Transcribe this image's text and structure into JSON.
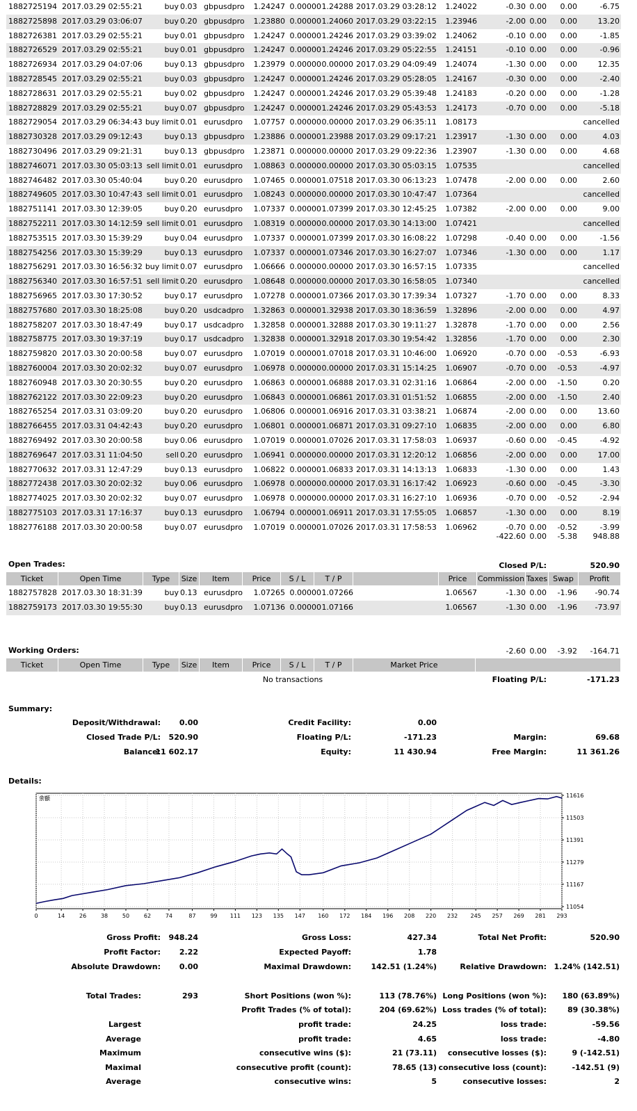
{
  "closed_trades": [
    [
      "1882725194",
      "2017.03.29 02:55:21",
      "buy",
      "0.03",
      "gbpusdpro",
      "1.24247",
      "0.00000",
      "1.24288",
      "2017.03.29 03:28:12",
      "1.24022",
      "-0.30",
      "0.00",
      "0.00",
      "-6.75"
    ],
    [
      "1882725898",
      "2017.03.29 03:06:07",
      "buy",
      "0.20",
      "gbpusdpro",
      "1.23880",
      "0.00000",
      "1.24060",
      "2017.03.29 03:22:15",
      "1.23946",
      "-2.00",
      "0.00",
      "0.00",
      "13.20"
    ],
    [
      "1882726381",
      "2017.03.29 02:55:21",
      "buy",
      "0.01",
      "gbpusdpro",
      "1.24247",
      "0.00000",
      "1.24246",
      "2017.03.29 03:39:02",
      "1.24062",
      "-0.10",
      "0.00",
      "0.00",
      "-1.85"
    ],
    [
      "1882726529",
      "2017.03.29 02:55:21",
      "buy",
      "0.01",
      "gbpusdpro",
      "1.24247",
      "0.00000",
      "1.24246",
      "2017.03.29 05:22:55",
      "1.24151",
      "-0.10",
      "0.00",
      "0.00",
      "-0.96"
    ],
    [
      "1882726934",
      "2017.03.29 04:07:06",
      "buy",
      "0.13",
      "gbpusdpro",
      "1.23979",
      "0.00000",
      "0.00000",
      "2017.03.29 04:09:49",
      "1.24074",
      "-1.30",
      "0.00",
      "0.00",
      "12.35"
    ],
    [
      "1882728545",
      "2017.03.29 02:55:21",
      "buy",
      "0.03",
      "gbpusdpro",
      "1.24247",
      "0.00000",
      "1.24246",
      "2017.03.29 05:28:05",
      "1.24167",
      "-0.30",
      "0.00",
      "0.00",
      "-2.40"
    ],
    [
      "1882728631",
      "2017.03.29 02:55:21",
      "buy",
      "0.02",
      "gbpusdpro",
      "1.24247",
      "0.00000",
      "1.24246",
      "2017.03.29 05:39:48",
      "1.24183",
      "-0.20",
      "0.00",
      "0.00",
      "-1.28"
    ],
    [
      "1882728829",
      "2017.03.29 02:55:21",
      "buy",
      "0.07",
      "gbpusdpro",
      "1.24247",
      "0.00000",
      "1.24246",
      "2017.03.29 05:43:53",
      "1.24173",
      "-0.70",
      "0.00",
      "0.00",
      "-5.18"
    ],
    [
      "1882729054",
      "2017.03.29 06:34:43",
      "buy limit",
      "0.01",
      "eurusdpro",
      "1.07757",
      "0.00000",
      "0.00000",
      "2017.03.29 06:35:11",
      "1.08173",
      "",
      "",
      "",
      "cancelled"
    ],
    [
      "1882730328",
      "2017.03.29 09:12:43",
      "buy",
      "0.13",
      "gbpusdpro",
      "1.23886",
      "0.00000",
      "1.23988",
      "2017.03.29 09:17:21",
      "1.23917",
      "-1.30",
      "0.00",
      "0.00",
      "4.03"
    ],
    [
      "1882730496",
      "2017.03.29 09:21:31",
      "buy",
      "0.13",
      "gbpusdpro",
      "1.23871",
      "0.00000",
      "0.00000",
      "2017.03.29 09:22:36",
      "1.23907",
      "-1.30",
      "0.00",
      "0.00",
      "4.68"
    ],
    [
      "1882746071",
      "2017.03.30 05:03:13",
      "sell limit",
      "0.01",
      "eurusdpro",
      "1.08863",
      "0.00000",
      "0.00000",
      "2017.03.30 05:03:15",
      "1.07535",
      "",
      "",
      "",
      "cancelled"
    ],
    [
      "1882746482",
      "2017.03.30 05:40:04",
      "buy",
      "0.20",
      "eurusdpro",
      "1.07465",
      "0.00000",
      "1.07518",
      "2017.03.30 06:13:23",
      "1.07478",
      "-2.00",
      "0.00",
      "0.00",
      "2.60"
    ],
    [
      "1882749605",
      "2017.03.30 10:47:43",
      "sell limit",
      "0.01",
      "eurusdpro",
      "1.08243",
      "0.00000",
      "0.00000",
      "2017.03.30 10:47:47",
      "1.07364",
      "",
      "",
      "",
      "cancelled"
    ],
    [
      "1882751141",
      "2017.03.30 12:39:05",
      "buy",
      "0.20",
      "eurusdpro",
      "1.07337",
      "0.00000",
      "1.07399",
      "2017.03.30 12:45:25",
      "1.07382",
      "-2.00",
      "0.00",
      "0.00",
      "9.00"
    ],
    [
      "1882752211",
      "2017.03.30 14:12:59",
      "sell limit",
      "0.01",
      "eurusdpro",
      "1.08319",
      "0.00000",
      "0.00000",
      "2017.03.30 14:13:00",
      "1.07421",
      "",
      "",
      "",
      "cancelled"
    ],
    [
      "1882753515",
      "2017.03.30 15:39:29",
      "buy",
      "0.04",
      "eurusdpro",
      "1.07337",
      "0.00000",
      "1.07399",
      "2017.03.30 16:08:22",
      "1.07298",
      "-0.40",
      "0.00",
      "0.00",
      "-1.56"
    ],
    [
      "1882754256",
      "2017.03.30 15:39:29",
      "buy",
      "0.13",
      "eurusdpro",
      "1.07337",
      "0.00000",
      "1.07346",
      "2017.03.30 16:27:07",
      "1.07346",
      "-1.30",
      "0.00",
      "0.00",
      "1.17"
    ],
    [
      "1882756291",
      "2017.03.30 16:56:32",
      "buy limit",
      "0.07",
      "eurusdpro",
      "1.06666",
      "0.00000",
      "0.00000",
      "2017.03.30 16:57:15",
      "1.07335",
      "",
      "",
      "",
      "cancelled"
    ],
    [
      "1882756340",
      "2017.03.30 16:57:51",
      "sell limit",
      "0.20",
      "eurusdpro",
      "1.08648",
      "0.00000",
      "0.00000",
      "2017.03.30 16:58:05",
      "1.07340",
      "",
      "",
      "",
      "cancelled"
    ],
    [
      "1882756965",
      "2017.03.30 17:30:52",
      "buy",
      "0.17",
      "eurusdpro",
      "1.07278",
      "0.00000",
      "1.07366",
      "2017.03.30 17:39:34",
      "1.07327",
      "-1.70",
      "0.00",
      "0.00",
      "8.33"
    ],
    [
      "1882757680",
      "2017.03.30 18:25:08",
      "buy",
      "0.20",
      "usdcadpro",
      "1.32863",
      "0.00000",
      "1.32938",
      "2017.03.30 18:36:59",
      "1.32896",
      "-2.00",
      "0.00",
      "0.00",
      "4.97"
    ],
    [
      "1882758207",
      "2017.03.30 18:47:49",
      "buy",
      "0.17",
      "usdcadpro",
      "1.32858",
      "0.00000",
      "1.32888",
      "2017.03.30 19:11:27",
      "1.32878",
      "-1.70",
      "0.00",
      "0.00",
      "2.56"
    ],
    [
      "1882758775",
      "2017.03.30 19:37:19",
      "buy",
      "0.17",
      "usdcadpro",
      "1.32838",
      "0.00000",
      "1.32918",
      "2017.03.30 19:54:42",
      "1.32856",
      "-1.70",
      "0.00",
      "0.00",
      "2.30"
    ],
    [
      "1882759820",
      "2017.03.30 20:00:58",
      "buy",
      "0.07",
      "eurusdpro",
      "1.07019",
      "0.00000",
      "1.07018",
      "2017.03.31 10:46:00",
      "1.06920",
      "-0.70",
      "0.00",
      "-0.53",
      "-6.93"
    ],
    [
      "1882760004",
      "2017.03.30 20:02:32",
      "buy",
      "0.07",
      "eurusdpro",
      "1.06978",
      "0.00000",
      "0.00000",
      "2017.03.31 15:14:25",
      "1.06907",
      "-0.70",
      "0.00",
      "-0.53",
      "-4.97"
    ],
    [
      "1882760948",
      "2017.03.30 20:30:55",
      "buy",
      "0.20",
      "eurusdpro",
      "1.06863",
      "0.00000",
      "1.06888",
      "2017.03.31 02:31:16",
      "1.06864",
      "-2.00",
      "0.00",
      "-1.50",
      "0.20"
    ],
    [
      "1882762122",
      "2017.03.30 22:09:23",
      "buy",
      "0.20",
      "eurusdpro",
      "1.06843",
      "0.00000",
      "1.06861",
      "2017.03.31 01:51:52",
      "1.06855",
      "-2.00",
      "0.00",
      "-1.50",
      "2.40"
    ],
    [
      "1882765254",
      "2017.03.31 03:09:20",
      "buy",
      "0.20",
      "eurusdpro",
      "1.06806",
      "0.00000",
      "1.06916",
      "2017.03.31 03:38:21",
      "1.06874",
      "-2.00",
      "0.00",
      "0.00",
      "13.60"
    ],
    [
      "1882766455",
      "2017.03.31 04:42:43",
      "buy",
      "0.20",
      "eurusdpro",
      "1.06801",
      "0.00000",
      "1.06871",
      "2017.03.31 09:27:10",
      "1.06835",
      "-2.00",
      "0.00",
      "0.00",
      "6.80"
    ],
    [
      "1882769492",
      "2017.03.30 20:00:58",
      "buy",
      "0.06",
      "eurusdpro",
      "1.07019",
      "0.00000",
      "1.07026",
      "2017.03.31 17:58:03",
      "1.06937",
      "-0.60",
      "0.00",
      "-0.45",
      "-4.92"
    ],
    [
      "1882769647",
      "2017.03.31 11:04:50",
      "sell",
      "0.20",
      "eurusdpro",
      "1.06941",
      "0.00000",
      "0.00000",
      "2017.03.31 12:20:12",
      "1.06856",
      "-2.00",
      "0.00",
      "0.00",
      "17.00"
    ],
    [
      "1882770632",
      "2017.03.31 12:47:29",
      "buy",
      "0.13",
      "eurusdpro",
      "1.06822",
      "0.00000",
      "1.06833",
      "2017.03.31 14:13:13",
      "1.06833",
      "-1.30",
      "0.00",
      "0.00",
      "1.43"
    ],
    [
      "1882772438",
      "2017.03.30 20:02:32",
      "buy",
      "0.06",
      "eurusdpro",
      "1.06978",
      "0.00000",
      "0.00000",
      "2017.03.31 16:17:42",
      "1.06923",
      "-0.60",
      "0.00",
      "-0.45",
      "-3.30"
    ],
    [
      "1882774025",
      "2017.03.30 20:02:32",
      "buy",
      "0.07",
      "eurusdpro",
      "1.06978",
      "0.00000",
      "0.00000",
      "2017.03.31 16:27:10",
      "1.06936",
      "-0.70",
      "0.00",
      "-0.52",
      "-2.94"
    ],
    [
      "1882775103",
      "2017.03.31 17:16:37",
      "buy",
      "0.13",
      "eurusdpro",
      "1.06794",
      "0.00000",
      "1.06911",
      "2017.03.31 17:55:05",
      "1.06857",
      "-1.30",
      "0.00",
      "0.00",
      "8.19"
    ],
    [
      "1882776188",
      "2017.03.30 20:00:58",
      "buy",
      "0.07",
      "eurusdpro",
      "1.07019",
      "0.00000",
      "1.07026",
      "2017.03.31 17:58:53",
      "1.06962",
      "-0.70",
      "0.00",
      "-0.52",
      "-3.99"
    ]
  ],
  "closed_totals": {
    "commission": "-422.60",
    "taxes": "0.00",
    "swap": "-5.38",
    "profit": "948.88",
    "pl_label": "Closed P/L:",
    "pl_value": "520.90"
  },
  "open_trades": {
    "title": "Open Trades:",
    "headers": [
      "Ticket",
      "Open Time",
      "Type",
      "Size",
      "Item",
      "Price",
      "S / L",
      "T / P",
      "",
      "Price",
      "Commission",
      "Taxes",
      "Swap",
      "Profit"
    ],
    "rows": [
      [
        "1882757828",
        "2017.03.30 18:31:39",
        "buy",
        "0.13",
        "eurusdpro",
        "1.07265",
        "0.00000",
        "1.07266",
        "1.06567",
        "-1.30",
        "0.00",
        "-1.96",
        "-90.74"
      ],
      [
        "1882759173",
        "2017.03.30 19:55:30",
        "buy",
        "0.13",
        "eurusdpro",
        "1.07136",
        "0.00000",
        "1.07166",
        "1.06567",
        "-1.30",
        "0.00",
        "-1.96",
        "-73.97"
      ]
    ],
    "totals": {
      "commission": "-2.60",
      "taxes": "0.00",
      "swap": "-3.92",
      "profit": "-164.71"
    },
    "pl_label": "Floating P/L:",
    "pl_value": "-171.23"
  },
  "working_orders": {
    "title": "Working Orders:",
    "headers": [
      "Ticket",
      "Open Time",
      "Type",
      "Size",
      "Item",
      "Price",
      "S / L",
      "T / P",
      "Market Price",
      ""
    ],
    "empty": "No transactions"
  },
  "summary": {
    "title": "Summary:",
    "deposit_label": "Deposit/Withdrawal:",
    "deposit": "0.00",
    "credit_label": "Credit Facility:",
    "credit": "0.00",
    "closed_label": "Closed Trade P/L:",
    "closed": "520.90",
    "floating_label": "Floating P/L:",
    "floating": "-171.23",
    "margin_label": "Margin:",
    "margin": "69.68",
    "balance_label": "Balance:",
    "balance": "11 602.17",
    "equity_label": "Equity:",
    "equity": "11 430.94",
    "free_label": "Free Margin:",
    "free": "11 361.26"
  },
  "details_title": "Details:",
  "chart_data": {
    "type": "line",
    "title": "余额",
    "x_ticks": [
      0,
      14,
      26,
      38,
      50,
      62,
      74,
      87,
      99,
      111,
      123,
      135,
      147,
      160,
      172,
      184,
      196,
      208,
      220,
      232,
      245,
      257,
      269,
      281,
      293
    ],
    "y_ticks": [
      11616,
      11503,
      11391,
      11279,
      11167,
      11054
    ],
    "xlim": [
      0,
      293
    ],
    "ylim": [
      11054,
      11616
    ],
    "series": [
      {
        "x": [
          0,
          5,
          10,
          15,
          20,
          30,
          40,
          50,
          60,
          70,
          80,
          90,
          100,
          110,
          120,
          125,
          130,
          134,
          137,
          140,
          142,
          145,
          148,
          152,
          160,
          170,
          180,
          190,
          200,
          210,
          220,
          230,
          240,
          245,
          250,
          255,
          260,
          265,
          270,
          275,
          280,
          285,
          290,
          293
        ],
        "y": [
          11070,
          11080,
          11088,
          11095,
          11110,
          11125,
          11140,
          11160,
          11170,
          11185,
          11200,
          11225,
          11255,
          11280,
          11310,
          11320,
          11325,
          11320,
          11345,
          11320,
          11305,
          11230,
          11215,
          11215,
          11225,
          11260,
          11275,
          11300,
          11340,
          11380,
          11420,
          11480,
          11540,
          11560,
          11580,
          11565,
          11590,
          11570,
          11580,
          11590,
          11600,
          11598,
          11610,
          11602
        ]
      }
    ],
    "grid": true
  },
  "stats": {
    "gross_profit_label": "Gross Profit:",
    "gross_profit": "948.24",
    "gross_loss_label": "Gross Loss:",
    "gross_loss": "427.34",
    "net_label": "Total Net Profit:",
    "net": "520.90",
    "pf_label": "Profit Factor:",
    "pf": "2.22",
    "ep_label": "Expected Payoff:",
    "ep": "1.78",
    "abs_dd_label": "Absolute Drawdown:",
    "abs_dd": "0.00",
    "max_dd_label": "Maximal Drawdown:",
    "max_dd": "142.51 (1.24%)",
    "rel_dd_label": "Relative Drawdown:",
    "rel_dd": "1.24% (142.51)",
    "total_label": "Total Trades:",
    "total": "293",
    "short_label": "Short Positions (won %):",
    "short": "113 (78.76%)",
    "long_label": "Long Positions (won %):",
    "long": "180 (63.89%)",
    "ptrades_label": "Profit Trades (% of total):",
    "ptrades": "204 (69.62%)",
    "ltrades_label": "Loss trades (% of total):",
    "ltrades": "89 (30.38%)",
    "largest_label": "Largest",
    "l_profit_label": "profit trade:",
    "l_profit": "24.25",
    "l_loss_label": "loss trade:",
    "l_loss": "-59.56",
    "average_label": "Average",
    "a_profit_label": "profit trade:",
    "a_profit": "4.65",
    "a_loss_label": "loss trade:",
    "a_loss": "-4.80",
    "maximum_label": "Maximum",
    "m_wins_label": "consecutive wins ($):",
    "m_wins": "21 (73.11)",
    "m_losses_label": "consecutive losses ($):",
    "m_losses": "9 (-142.51)",
    "maximal_label": "Maximal",
    "mx_profit_label": "consecutive profit (count):",
    "mx_profit": "78.65 (13)",
    "mx_loss_label": "consecutive loss (count):",
    "mx_loss": "-142.51 (9)",
    "average2_label": "Average",
    "av_wins_label": "consecutive wins:",
    "av_wins": "5",
    "av_losses_label": "consecutive losses:",
    "av_losses": "2"
  }
}
